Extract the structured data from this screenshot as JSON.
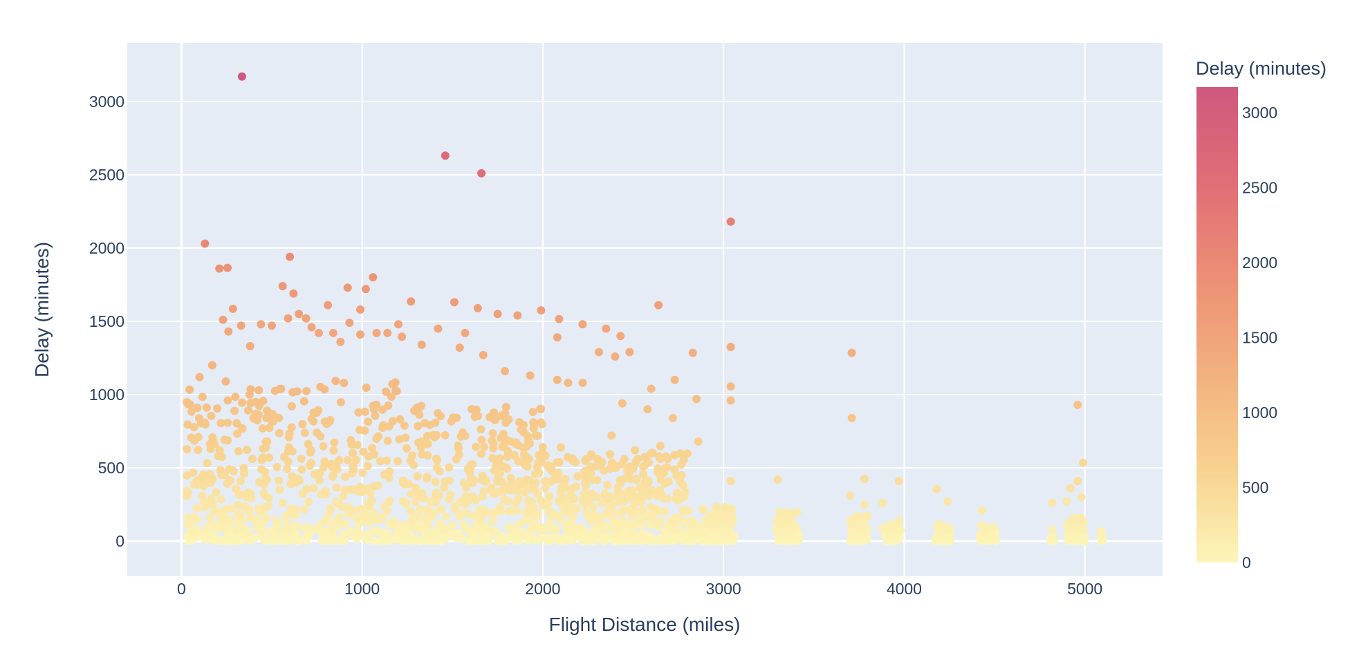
{
  "chart_data": {
    "type": "scatter",
    "title": "",
    "xlabel": "Flight Distance (miles)",
    "ylabel": "Delay (minutes)",
    "xlim": [
      -300,
      5430
    ],
    "ylim": [
      -240,
      3400
    ],
    "x_ticks": [
      0,
      1000,
      2000,
      3000,
      4000,
      5000
    ],
    "y_ticks": [
      0,
      500,
      1000,
      1500,
      2000,
      2500,
      3000
    ],
    "grid": true,
    "legend": "none",
    "colorbar": {
      "title": "Delay (minutes)",
      "range": [
        0,
        3170
      ],
      "ticks": [
        0,
        500,
        1000,
        1500,
        2000,
        2500,
        3000
      ],
      "colors": [
        "#fcf5b8",
        "#f8d18f",
        "#f2b07e",
        "#ec8f75",
        "#e06d76",
        "#cf597e"
      ]
    },
    "colors": {
      "plot_bg": "#e5ecf6",
      "grid": "#ffffff",
      "text": "#2a3f5f"
    },
    "points_note_cluster": [],
    "points": [
      [
        335,
        3170
      ],
      [
        1460,
        2630
      ],
      [
        1660,
        2510
      ],
      [
        3040,
        2180
      ],
      [
        130,
        2030
      ],
      [
        210,
        1860
      ],
      [
        255,
        1865
      ],
      [
        600,
        1940
      ],
      [
        285,
        1585
      ],
      [
        560,
        1740
      ],
      [
        620,
        1690
      ],
      [
        650,
        1550
      ],
      [
        810,
        1610
      ],
      [
        920,
        1730
      ],
      [
        990,
        1580
      ],
      [
        1020,
        1720
      ],
      [
        1060,
        1800
      ],
      [
        1270,
        1635
      ],
      [
        1510,
        1630
      ],
      [
        1640,
        1590
      ],
      [
        1750,
        1550
      ],
      [
        1860,
        1540
      ],
      [
        1990,
        1575
      ],
      [
        2090,
        1515
      ],
      [
        2220,
        1480
      ],
      [
        2350,
        1450
      ],
      [
        2430,
        1400
      ],
      [
        2640,
        1610
      ],
      [
        2830,
        1285
      ],
      [
        3040,
        1325
      ],
      [
        3040,
        1055
      ],
      [
        3040,
        960
      ],
      [
        2850,
        970
      ],
      [
        2860,
        680
      ],
      [
        3710,
        1285
      ],
      [
        3710,
        840
      ],
      [
        4960,
        930
      ],
      [
        4990,
        535
      ],
      [
        4920,
        360
      ],
      [
        4960,
        410
      ],
      [
        4980,
        300
      ],
      [
        3040,
        410
      ],
      [
        3300,
        420
      ],
      [
        3780,
        425
      ],
      [
        3970,
        410
      ],
      [
        4180,
        355
      ],
      [
        4240,
        270
      ],
      [
        4430,
        210
      ],
      [
        4820,
        260
      ],
      [
        4900,
        270
      ],
      [
        3700,
        310
      ],
      [
        3780,
        250
      ],
      [
        3880,
        260
      ],
      [
        3970,
        140
      ],
      [
        2780,
        300
      ],
      [
        2720,
        840
      ],
      [
        2730,
        1100
      ],
      [
        2600,
        1040
      ],
      [
        2580,
        900
      ],
      [
        2480,
        1290
      ],
      [
        2400,
        1260
      ],
      [
        2310,
        1290
      ],
      [
        2220,
        1080
      ],
      [
        2080,
        1390
      ],
      [
        2080,
        1100
      ],
      [
        2140,
        1080
      ],
      [
        1930,
        1130
      ],
      [
        1790,
        1160
      ],
      [
        1670,
        1270
      ],
      [
        1570,
        1420
      ],
      [
        1540,
        1320
      ],
      [
        1420,
        1450
      ],
      [
        1330,
        1340
      ],
      [
        1220,
        1395
      ],
      [
        1200,
        1480
      ],
      [
        1140,
        1420
      ],
      [
        1080,
        1420
      ],
      [
        990,
        1410
      ],
      [
        930,
        1490
      ],
      [
        880,
        1360
      ],
      [
        840,
        1420
      ],
      [
        760,
        1420
      ],
      [
        720,
        1460
      ],
      [
        690,
        1520
      ],
      [
        590,
        1520
      ],
      [
        500,
        1470
      ],
      [
        440,
        1480
      ],
      [
        380,
        1330
      ],
      [
        330,
        1470
      ],
      [
        260,
        1430
      ],
      [
        230,
        1510
      ],
      [
        170,
        1200
      ],
      [
        100,
        1120
      ],
      [
        2440,
        940
      ],
      [
        2380,
        720
      ],
      [
        2240,
        560
      ],
      [
        2100,
        640
      ],
      [
        1960,
        720
      ],
      [
        1880,
        760
      ],
      [
        1820,
        680
      ],
      [
        2510,
        620
      ],
      [
        2650,
        650
      ],
      [
        2650,
        560
      ]
    ]
  }
}
